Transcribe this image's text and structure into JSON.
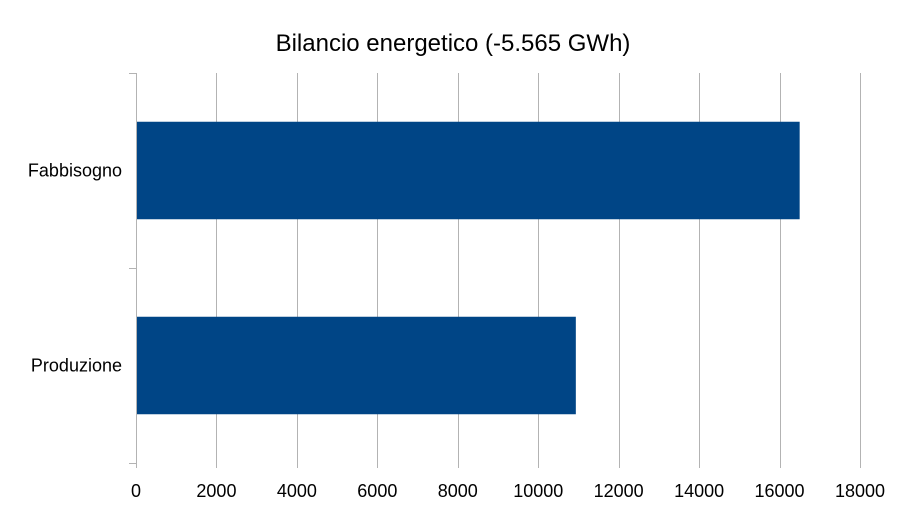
{
  "chart_data": {
    "type": "bar",
    "orientation": "horizontal",
    "title": "Bilancio energetico (-5.565 GWh)",
    "xlabel": "",
    "ylabel": "",
    "categories": [
      "Fabbisogno",
      "Produzione"
    ],
    "values": [
      16500,
      10935
    ],
    "xlim": [
      0,
      18000
    ],
    "x_ticks": [
      0,
      2000,
      4000,
      6000,
      8000,
      10000,
      12000,
      14000,
      16000,
      18000
    ],
    "grid": "vertical",
    "legend": "none",
    "bar_color": "#004586"
  }
}
